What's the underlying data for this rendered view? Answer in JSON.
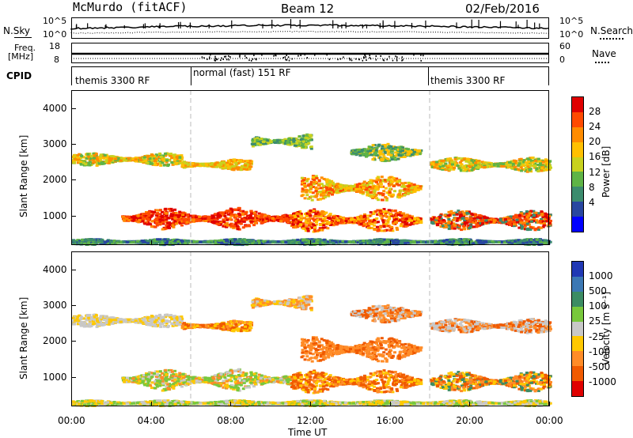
{
  "header": {
    "station": "McMurdo (fitACF)",
    "beam": "Beam 12",
    "date": "02/Feb/2016"
  },
  "top_panels": {
    "nsky_label": "N.Sky",
    "nsky_ticks": [
      "10^5",
      "10^0"
    ],
    "nsearch_label": "N.Search",
    "nsearch_ticks": [
      "10^5",
      "10^0"
    ],
    "freq_label_1": "Freq.",
    "freq_label_2": "[MHz]",
    "freq_ticks": [
      "18",
      "8"
    ],
    "nave_label": "Nave",
    "nave_ticks": [
      "60",
      "0"
    ],
    "cpid_label": "CPID",
    "cpid_segments": [
      {
        "label": "themis 3300 RF",
        "start_h": 0,
        "end_h": 6
      },
      {
        "label": "normal (fast) 151 RF",
        "start_h": 6,
        "end_h": 18
      },
      {
        "label": "themis 3300 RF",
        "start_h": 18,
        "end_h": 24
      }
    ]
  },
  "chart_data": [
    {
      "type": "heatmap",
      "panel": "power",
      "ylabel": "Slant Range [km]",
      "xlabel": "",
      "ylim": [
        180,
        4500
      ],
      "xlim": [
        0,
        24
      ],
      "yticks": [
        1000,
        2000,
        3000,
        4000
      ],
      "colorbar": {
        "label": "Power [dB]",
        "ticks": [
          "28",
          "24",
          "20",
          "16",
          "12",
          "8",
          "4"
        ],
        "colors": [
          "#e00000",
          "#ff4a00",
          "#ff8c00",
          "#ffc000",
          "#c8d21e",
          "#5fb446",
          "#3c8c6e",
          "#2846a0",
          "#0000ff"
        ]
      }
    },
    {
      "type": "heatmap",
      "panel": "velocity",
      "ylabel": "Slant Range [km]",
      "xlabel": "Time UT",
      "ylim": [
        180,
        4500
      ],
      "xlim": [
        0,
        24
      ],
      "yticks": [
        1000,
        2000,
        3000,
        4000
      ],
      "xticks": [
        "00:00",
        "04:00",
        "08:00",
        "12:00",
        "16:00",
        "20:00",
        "00:00"
      ],
      "colorbar": {
        "label": "Velocity [m s⁻¹]",
        "ticks": [
          "1000",
          "500",
          "100",
          "25",
          "-25",
          "-100",
          "-500",
          "-1000"
        ],
        "colors": [
          "#2038b4",
          "#3c78b4",
          "#3c8c64",
          "#78c83c",
          "#c8c8c8",
          "#ffc800",
          "#ff8c28",
          "#f05a00",
          "#e00000"
        ]
      }
    }
  ]
}
